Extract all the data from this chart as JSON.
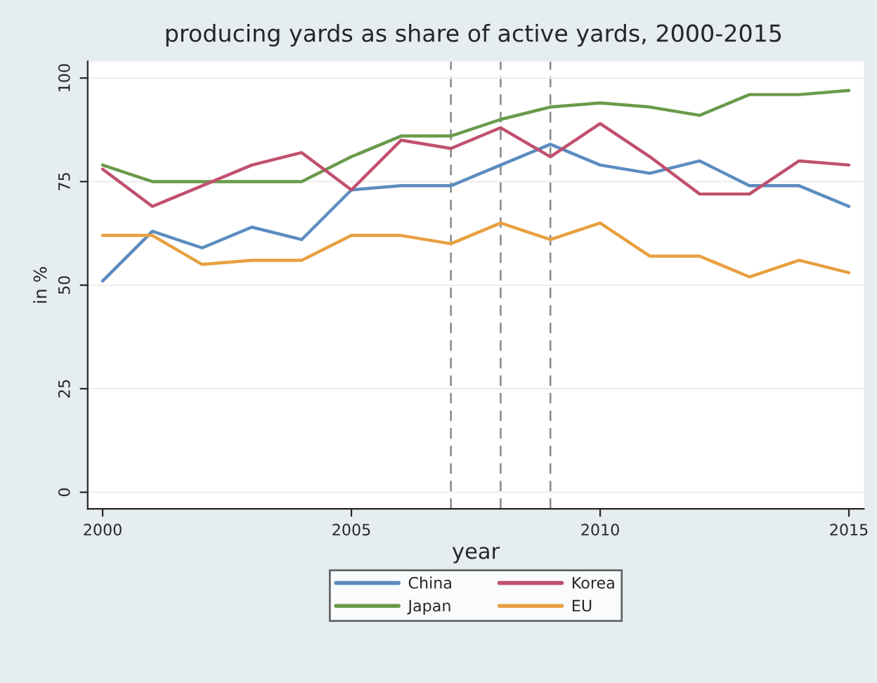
{
  "chart_data": {
    "type": "line",
    "title": "producing yards as share of active yards, 2000-2015",
    "xlabel": "year",
    "ylabel": "in %",
    "x": [
      2000,
      2001,
      2002,
      2003,
      2004,
      2005,
      2006,
      2007,
      2008,
      2009,
      2010,
      2011,
      2012,
      2013,
      2014,
      2015
    ],
    "series": [
      {
        "name": "China",
        "color": "#5b8cc0",
        "values": [
          51,
          63,
          59,
          64,
          61,
          73,
          74,
          74,
          79,
          84,
          79,
          77,
          80,
          74,
          74,
          69
        ]
      },
      {
        "name": "Japan",
        "color": "#6a9a4a",
        "values": [
          79,
          75,
          75,
          75,
          75,
          81,
          86,
          86,
          90,
          93,
          94,
          93,
          91,
          96,
          96,
          97
        ]
      },
      {
        "name": "Korea",
        "color": "#c0506e",
        "values": [
          78,
          69,
          74,
          79,
          82,
          73,
          85,
          83,
          88,
          81,
          89,
          81,
          72,
          72,
          80,
          79
        ]
      },
      {
        "name": "EU",
        "color": "#e8a040",
        "values": [
          62,
          62,
          55,
          56,
          56,
          62,
          62,
          60,
          65,
          61,
          65,
          57,
          57,
          52,
          56,
          53
        ]
      }
    ],
    "xlim": [
      1999.7,
      2015.3
    ],
    "ylim": [
      -4,
      104
    ],
    "xticks": [
      2000,
      2005,
      2010,
      2015
    ],
    "yticks": [
      0,
      25,
      50,
      75,
      100
    ],
    "ref_lines": [
      {
        "axis": "x",
        "value": 2007,
        "color": "#888888",
        "line_style": "dashed"
      },
      {
        "axis": "x",
        "value": 2008,
        "color": "#888888",
        "line_style": "dashed"
      },
      {
        "axis": "x",
        "value": 2009,
        "color": "#888888",
        "line_style": "dashed"
      }
    ],
    "grid": "y",
    "legend": "bottom",
    "line_style": "solid",
    "marker": "none"
  }
}
